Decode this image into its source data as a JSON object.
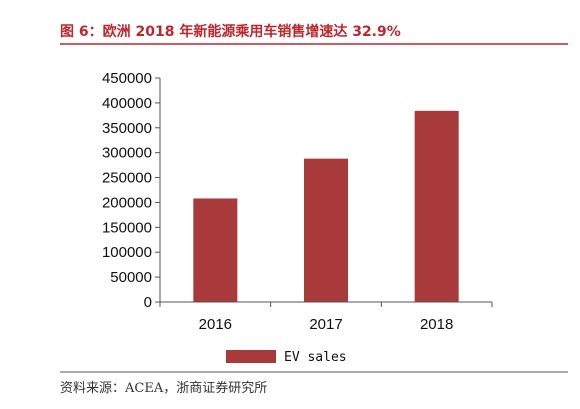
{
  "figure": {
    "title": "图 6：欧洲 2018 年新能源乘用车销售增速达 32.9%",
    "source": "资料来源：ACEA，浙商证券研究所"
  },
  "colors": {
    "title": "#c0272d",
    "bar": "#a83a3c",
    "axis": "#555555",
    "rule": "#c0272d"
  },
  "chart_data": {
    "type": "bar",
    "categories": [
      "2016",
      "2017",
      "2018"
    ],
    "series": [
      {
        "name": "EV sales",
        "values": [
          208000,
          288000,
          384000
        ]
      }
    ],
    "ylim": [
      0,
      450000
    ],
    "yticks": [
      "0",
      "50000",
      "100000",
      "150000",
      "200000",
      "250000",
      "300000",
      "350000",
      "400000",
      "450000"
    ],
    "grid": false,
    "legend_position": "bottom"
  }
}
